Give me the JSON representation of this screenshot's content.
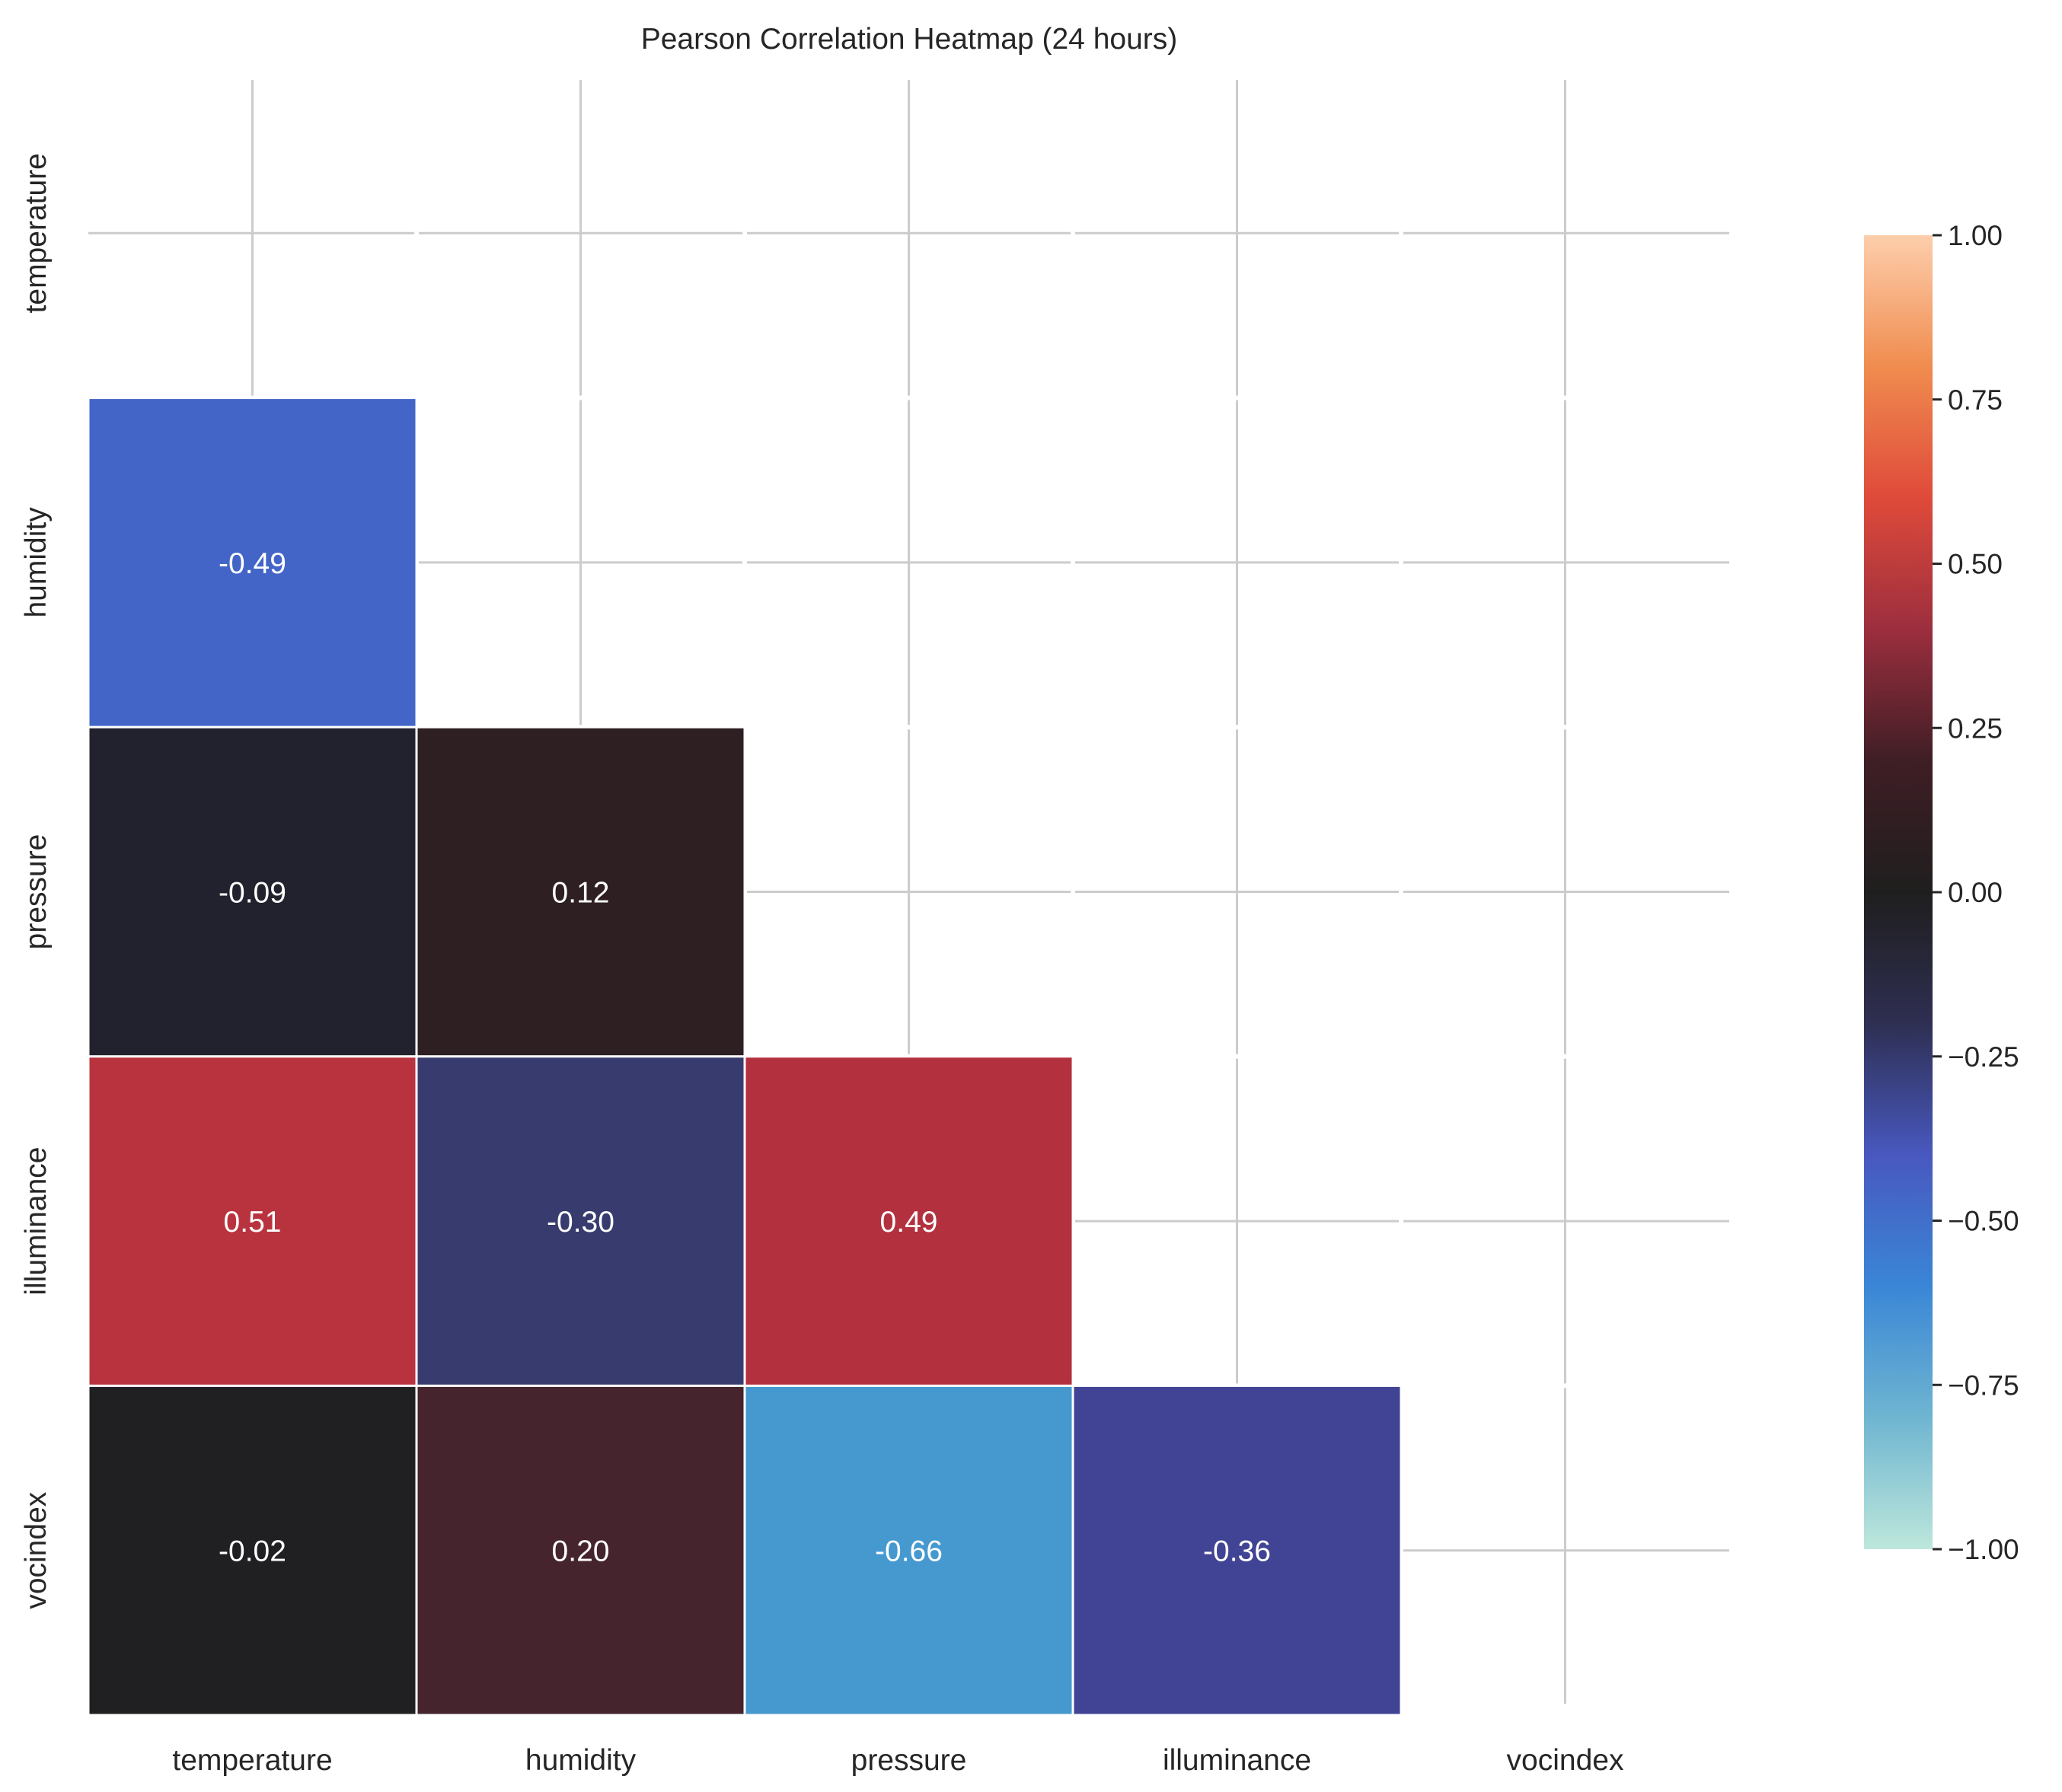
{
  "chart_data": {
    "type": "heatmap",
    "title": "Pearson Correlation Heatmap (24 hours)",
    "xlabel": "",
    "ylabel": "",
    "variables": [
      "temperature",
      "humidity",
      "pressure",
      "illuminance",
      "vocindex"
    ],
    "mask": "upper-triangle-including-diagonal",
    "values": [
      [
        null,
        null,
        null,
        null,
        null
      ],
      [
        -0.49,
        null,
        null,
        null,
        null
      ],
      [
        -0.09,
        0.12,
        null,
        null,
        null
      ],
      [
        0.51,
        -0.3,
        0.49,
        null,
        null
      ],
      [
        -0.02,
        0.2,
        -0.66,
        -0.36,
        null
      ]
    ],
    "labels": [
      [
        null,
        null,
        null,
        null,
        null
      ],
      [
        "-0.49",
        null,
        null,
        null,
        null
      ],
      [
        "-0.09",
        "0.12",
        null,
        null,
        null
      ],
      [
        "0.51",
        "-0.30",
        "0.49",
        null,
        null
      ],
      [
        "-0.02",
        "0.20",
        "-0.66",
        "-0.36",
        null
      ]
    ],
    "cell_colors": [
      [
        null,
        null,
        null,
        null,
        null
      ],
      [
        "#4265c7",
        null,
        null,
        null,
        null
      ],
      [
        "#21222d",
        "#2e1f22",
        null,
        null,
        null
      ],
      [
        "#b9333f",
        "#383b6e",
        "#b3313f",
        null,
        null
      ],
      [
        "#202023",
        "#46242d",
        "#4599cf",
        "#414494",
        null
      ]
    ],
    "colorbar": {
      "range": [
        -1.0,
        1.0
      ],
      "ticks": [
        1.0,
        0.75,
        0.5,
        0.25,
        0.0,
        -0.25,
        -0.5,
        -0.75,
        -1.0
      ],
      "tick_labels": [
        "1.00",
        "0.75",
        "0.50",
        "0.25",
        "0.00",
        "−0.25",
        "−0.50",
        "−0.75",
        "−1.00"
      ],
      "colormap_stops": [
        "#bde7db",
        "#6fb5d1",
        "#3a86d6",
        "#4858bf",
        "#2e2f52",
        "#1f1e1e",
        "#3f1e25",
        "#9c2e3e",
        "#df4a3a",
        "#f08c4f",
        "#fdceac"
      ]
    },
    "grid": true
  }
}
